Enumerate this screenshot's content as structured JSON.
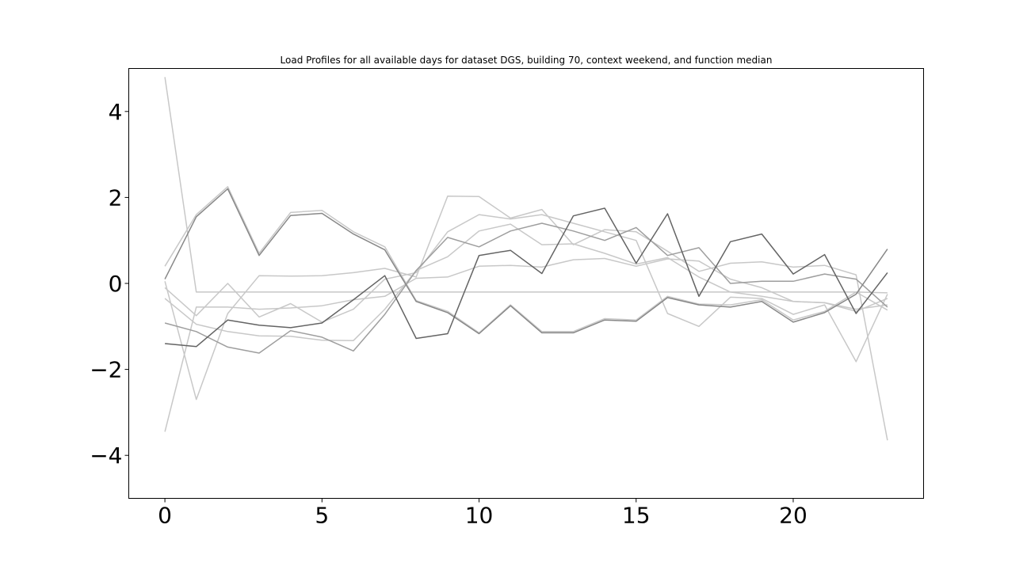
{
  "chart_data": {
    "type": "line",
    "title": "Load Profiles for all available days for dataset DGS, building 70, context weekend, and function median",
    "xlabel": "",
    "ylabel": "",
    "xlim": [
      -1.15,
      24.15
    ],
    "ylim": [
      -5,
      5
    ],
    "x_ticks": [
      0,
      5,
      10,
      15,
      20
    ],
    "x_tick_labels": [
      "0",
      "5",
      "10",
      "15",
      "20"
    ],
    "y_ticks": [
      -4,
      -2,
      0,
      2,
      4
    ],
    "y_tick_labels": [
      "−4",
      "−2",
      "0",
      "2",
      "4"
    ],
    "grid": false,
    "legend": "none",
    "x": [
      0,
      1,
      2,
      3,
      4,
      5,
      6,
      7,
      8,
      9,
      10,
      11,
      12,
      13,
      14,
      15,
      16,
      17,
      18,
      19,
      20,
      21,
      22,
      23
    ],
    "series": [
      {
        "color": "#c8c8c8",
        "values": [
          4.8,
          -0.2,
          -0.2,
          -0.2,
          -0.2,
          -0.2,
          -0.2,
          -0.2,
          -0.2,
          -0.2,
          -0.2,
          -0.2,
          -0.2,
          -0.2,
          -0.2,
          -0.2,
          -0.2,
          -0.2,
          -0.2,
          -0.2,
          -0.2,
          -0.2,
          -0.2,
          -0.22
        ]
      },
      {
        "color": "#c8c8c8",
        "values": [
          -3.45,
          -0.55,
          -0.55,
          -0.6,
          -0.57,
          -0.52,
          -0.38,
          -0.3,
          0.12,
          0.15,
          0.4,
          0.42,
          0.38,
          0.55,
          0.58,
          0.4,
          0.57,
          0.52,
          0.1,
          -0.1,
          -0.42,
          -0.45,
          -0.65,
          -0.35
        ]
      },
      {
        "color": "#c8c8c8",
        "values": [
          0.4,
          1.6,
          2.25,
          0.7,
          1.65,
          1.7,
          1.2,
          0.85,
          -0.4,
          -0.65,
          -1.15,
          -0.5,
          -1.12,
          -1.12,
          -0.82,
          -0.85,
          -0.3,
          -0.48,
          -0.5,
          -0.38,
          -0.85,
          -0.65,
          -0.2,
          -0.62
        ]
      },
      {
        "color": "#c8c8c8",
        "values": [
          0.05,
          -2.7,
          -0.7,
          0.18,
          0.17,
          0.18,
          0.25,
          0.35,
          0.15,
          2.03,
          2.02,
          1.52,
          1.72,
          0.9,
          1.25,
          1.2,
          0.75,
          0.28,
          0.47,
          0.5,
          0.38,
          0.42,
          0.2,
          -3.65
        ]
      },
      {
        "color": "#c8c8c8",
        "values": [
          -0.1,
          -0.75,
          0.0,
          -0.78,
          -0.47,
          -0.9,
          -0.6,
          0.1,
          0.25,
          1.2,
          1.6,
          1.5,
          1.6,
          1.4,
          1.2,
          1.0,
          -0.7,
          -1.0,
          -0.32,
          -0.35,
          -0.72,
          -0.5,
          -1.82,
          -0.25
        ]
      },
      {
        "color": "#c8c8c8",
        "values": [
          -0.35,
          -0.95,
          -1.12,
          -1.22,
          -1.23,
          -1.32,
          -1.33,
          -0.6,
          0.3,
          0.62,
          1.22,
          1.38,
          0.9,
          0.92,
          0.7,
          0.45,
          0.6,
          0.15,
          -0.2,
          -0.3,
          -0.42,
          -0.45,
          -0.6,
          -0.5
        ]
      },
      {
        "color": "#9e9e9e",
        "values": [
          -0.92,
          -1.12,
          -1.48,
          -1.62,
          -1.1,
          -1.25,
          -1.57,
          -0.72,
          0.3,
          1.07,
          0.85,
          1.22,
          1.4,
          1.22,
          1.0,
          1.3,
          0.65,
          0.83,
          0.0,
          0.05,
          0.05,
          0.22,
          0.1,
          -0.55
        ]
      },
      {
        "color": "#888888",
        "values": [
          0.1,
          1.55,
          2.2,
          0.65,
          1.58,
          1.63,
          1.15,
          0.78,
          -0.42,
          -0.68,
          -1.17,
          -0.52,
          -1.15,
          -1.15,
          -0.85,
          -0.88,
          -0.33,
          -0.5,
          -0.55,
          -0.42,
          -0.9,
          -0.68,
          -0.25,
          0.8
        ]
      },
      {
        "color": "#646464",
        "values": [
          -1.4,
          -1.47,
          -0.85,
          -0.97,
          -1.03,
          -0.92,
          -0.38,
          0.18,
          -1.28,
          -1.17,
          0.65,
          0.77,
          0.23,
          1.57,
          1.75,
          0.47,
          1.62,
          -0.3,
          0.97,
          1.15,
          0.22,
          0.67,
          -0.7,
          0.25
        ]
      }
    ]
  }
}
